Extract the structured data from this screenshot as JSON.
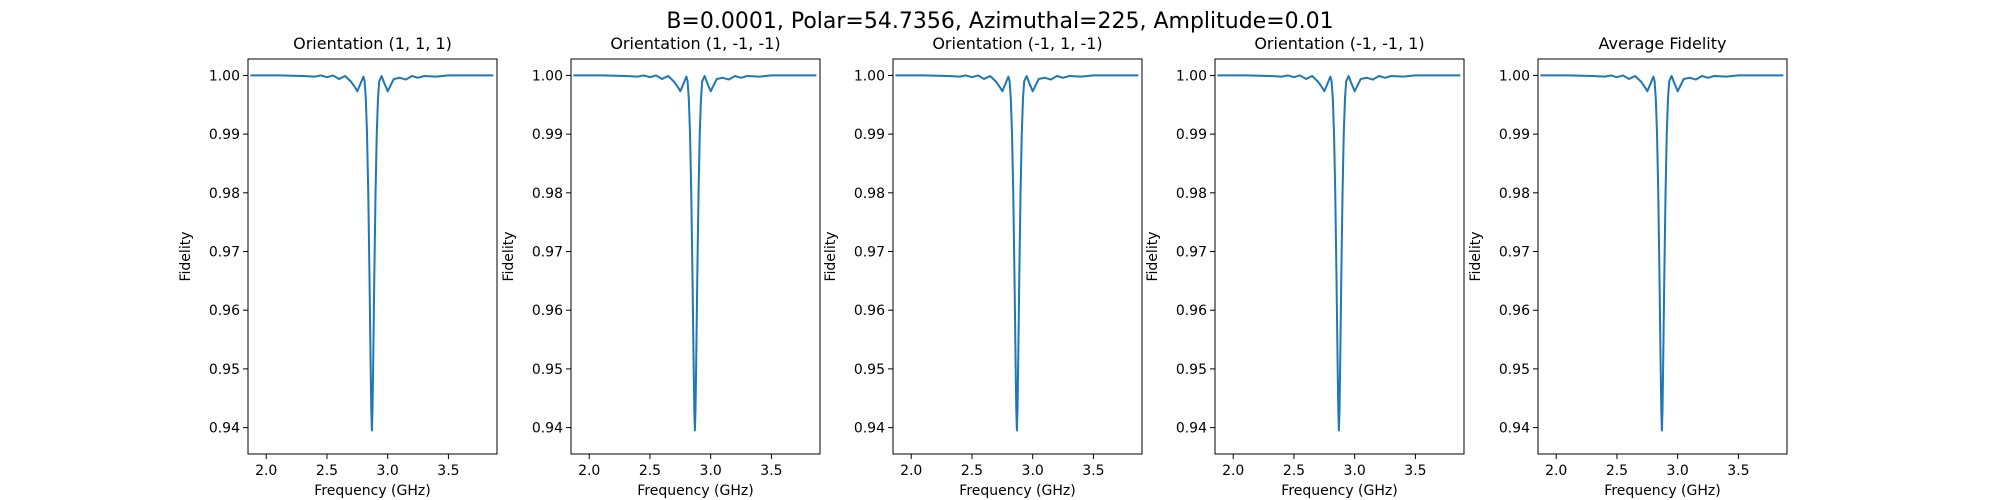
{
  "figure": {
    "suptitle": "B=0.0001, Polar=54.7356, Azimuthal=225, Amplitude=0.01"
  },
  "chart_data": [
    {
      "type": "line",
      "title": "Orientation (1, 1, 1)",
      "xlabel": "Frequency (GHz)",
      "ylabel": "Fidelity",
      "xlim": [
        1.85,
        3.9
      ],
      "ylim": [
        0.9355,
        1.0028
      ],
      "xticks": [
        "2.0",
        "2.5",
        "3.0",
        "3.5"
      ],
      "yticks": [
        "1.00",
        "0.99",
        "0.98",
        "0.97",
        "0.96",
        "0.95",
        "0.94"
      ],
      "series": [
        {
          "color": "#1f77b4",
          "x": [
            1.87,
            2.1,
            2.3,
            2.4,
            2.45,
            2.5,
            2.55,
            2.6,
            2.65,
            2.7,
            2.73,
            2.75,
            2.78,
            2.8,
            2.81,
            2.82,
            2.83,
            2.84,
            2.85,
            2.86,
            2.865,
            2.87,
            2.875,
            2.88,
            2.89,
            2.9,
            2.91,
            2.92,
            2.93,
            2.95,
            2.97,
            3.0,
            3.05,
            3.1,
            3.15,
            3.2,
            3.25,
            3.3,
            3.4,
            3.5,
            3.6,
            3.87
          ],
          "y": [
            1.0,
            1.0,
            0.9999,
            0.9998,
            1.0,
            0.9997,
            1.0,
            0.9994,
            0.9999,
            0.9989,
            0.998,
            0.9973,
            0.9988,
            0.9998,
            0.999,
            0.996,
            0.99,
            0.98,
            0.966,
            0.95,
            0.943,
            0.9395,
            0.943,
            0.95,
            0.966,
            0.98,
            0.99,
            0.996,
            0.999,
            0.9999,
            0.9988,
            0.9973,
            0.9994,
            0.9996,
            0.9993,
            0.9999,
            0.9996,
            0.9999,
            0.9998,
            1.0,
            1.0,
            1.0
          ]
        }
      ]
    },
    {
      "type": "line",
      "title": "Orientation (1, -1, -1)",
      "xlabel": "Frequency (GHz)",
      "ylabel": "Fidelity",
      "xlim": [
        1.85,
        3.9
      ],
      "ylim": [
        0.9355,
        1.0028
      ],
      "xticks": [
        "2.0",
        "2.5",
        "3.0",
        "3.5"
      ],
      "yticks": [
        "1.00",
        "0.99",
        "0.98",
        "0.97",
        "0.96",
        "0.95",
        "0.94"
      ],
      "series": [
        {
          "color": "#1f77b4",
          "x": [
            1.87,
            2.1,
            2.3,
            2.4,
            2.45,
            2.5,
            2.55,
            2.6,
            2.65,
            2.7,
            2.73,
            2.75,
            2.78,
            2.8,
            2.81,
            2.82,
            2.83,
            2.84,
            2.85,
            2.86,
            2.865,
            2.87,
            2.875,
            2.88,
            2.89,
            2.9,
            2.91,
            2.92,
            2.93,
            2.95,
            2.97,
            3.0,
            3.05,
            3.1,
            3.15,
            3.2,
            3.25,
            3.3,
            3.4,
            3.5,
            3.6,
            3.87
          ],
          "y": [
            1.0,
            1.0,
            0.9999,
            0.9998,
            1.0,
            0.9997,
            1.0,
            0.9994,
            0.9999,
            0.9989,
            0.998,
            0.9973,
            0.9988,
            0.9998,
            0.999,
            0.996,
            0.99,
            0.98,
            0.966,
            0.95,
            0.943,
            0.9395,
            0.943,
            0.95,
            0.966,
            0.98,
            0.99,
            0.996,
            0.999,
            0.9999,
            0.9988,
            0.9973,
            0.9994,
            0.9996,
            0.9993,
            0.9999,
            0.9996,
            0.9999,
            0.9998,
            1.0,
            1.0,
            1.0
          ]
        }
      ]
    },
    {
      "type": "line",
      "title": "Orientation (-1, 1, -1)",
      "xlabel": "Frequency (GHz)",
      "ylabel": "Fidelity",
      "xlim": [
        1.85,
        3.9
      ],
      "ylim": [
        0.9355,
        1.0028
      ],
      "xticks": [
        "2.0",
        "2.5",
        "3.0",
        "3.5"
      ],
      "yticks": [
        "1.00",
        "0.99",
        "0.98",
        "0.97",
        "0.96",
        "0.95",
        "0.94"
      ],
      "series": [
        {
          "color": "#1f77b4",
          "x": [
            1.87,
            2.1,
            2.3,
            2.4,
            2.45,
            2.5,
            2.55,
            2.6,
            2.65,
            2.7,
            2.73,
            2.75,
            2.78,
            2.8,
            2.81,
            2.82,
            2.83,
            2.84,
            2.85,
            2.86,
            2.865,
            2.87,
            2.875,
            2.88,
            2.89,
            2.9,
            2.91,
            2.92,
            2.93,
            2.95,
            2.97,
            3.0,
            3.05,
            3.1,
            3.15,
            3.2,
            3.25,
            3.3,
            3.4,
            3.5,
            3.6,
            3.87
          ],
          "y": [
            1.0,
            1.0,
            0.9999,
            0.9998,
            1.0,
            0.9997,
            1.0,
            0.9994,
            0.9999,
            0.9989,
            0.998,
            0.9973,
            0.9988,
            0.9998,
            0.999,
            0.996,
            0.99,
            0.98,
            0.966,
            0.95,
            0.943,
            0.9395,
            0.943,
            0.95,
            0.966,
            0.98,
            0.99,
            0.996,
            0.999,
            0.9999,
            0.9988,
            0.9973,
            0.9994,
            0.9996,
            0.9993,
            0.9999,
            0.9996,
            0.9999,
            0.9998,
            1.0,
            1.0,
            1.0
          ]
        }
      ]
    },
    {
      "type": "line",
      "title": "Orientation (-1, -1, 1)",
      "xlabel": "Frequency (GHz)",
      "ylabel": "Fidelity",
      "xlim": [
        1.85,
        3.9
      ],
      "ylim": [
        0.9355,
        1.0028
      ],
      "xticks": [
        "2.0",
        "2.5",
        "3.0",
        "3.5"
      ],
      "yticks": [
        "1.00",
        "0.99",
        "0.98",
        "0.97",
        "0.96",
        "0.95",
        "0.94"
      ],
      "series": [
        {
          "color": "#1f77b4",
          "x": [
            1.87,
            2.1,
            2.3,
            2.4,
            2.45,
            2.5,
            2.55,
            2.6,
            2.65,
            2.7,
            2.73,
            2.75,
            2.78,
            2.8,
            2.81,
            2.82,
            2.83,
            2.84,
            2.85,
            2.86,
            2.865,
            2.87,
            2.875,
            2.88,
            2.89,
            2.9,
            2.91,
            2.92,
            2.93,
            2.95,
            2.97,
            3.0,
            3.05,
            3.1,
            3.15,
            3.2,
            3.25,
            3.3,
            3.4,
            3.5,
            3.6,
            3.87
          ],
          "y": [
            1.0,
            1.0,
            0.9999,
            0.9998,
            1.0,
            0.9997,
            1.0,
            0.9994,
            0.9999,
            0.9989,
            0.998,
            0.9973,
            0.9988,
            0.9998,
            0.999,
            0.996,
            0.99,
            0.98,
            0.966,
            0.95,
            0.943,
            0.9395,
            0.943,
            0.95,
            0.966,
            0.98,
            0.99,
            0.996,
            0.999,
            0.9999,
            0.9988,
            0.9973,
            0.9994,
            0.9996,
            0.9993,
            0.9999,
            0.9996,
            0.9999,
            0.9998,
            1.0,
            1.0,
            1.0
          ]
        }
      ]
    },
    {
      "type": "line",
      "title": "Average Fidelity",
      "xlabel": "Frequency (GHz)",
      "ylabel": "Fidelity",
      "xlim": [
        1.85,
        3.9
      ],
      "ylim": [
        0.9355,
        1.0028
      ],
      "xticks": [
        "2.0",
        "2.5",
        "3.0",
        "3.5"
      ],
      "yticks": [
        "1.00",
        "0.99",
        "0.98",
        "0.97",
        "0.96",
        "0.95",
        "0.94"
      ],
      "series": [
        {
          "color": "#1f77b4",
          "x": [
            1.87,
            2.1,
            2.3,
            2.4,
            2.45,
            2.5,
            2.55,
            2.6,
            2.65,
            2.7,
            2.73,
            2.75,
            2.78,
            2.8,
            2.81,
            2.82,
            2.83,
            2.84,
            2.85,
            2.86,
            2.865,
            2.87,
            2.875,
            2.88,
            2.89,
            2.9,
            2.91,
            2.92,
            2.93,
            2.95,
            2.97,
            3.0,
            3.05,
            3.1,
            3.15,
            3.2,
            3.25,
            3.3,
            3.4,
            3.5,
            3.6,
            3.87
          ],
          "y": [
            1.0,
            1.0,
            0.9999,
            0.9998,
            1.0,
            0.9997,
            1.0,
            0.9994,
            0.9999,
            0.9989,
            0.998,
            0.9973,
            0.9988,
            0.9998,
            0.999,
            0.996,
            0.99,
            0.98,
            0.966,
            0.95,
            0.943,
            0.9395,
            0.943,
            0.95,
            0.966,
            0.98,
            0.99,
            0.996,
            0.999,
            0.9999,
            0.9988,
            0.9973,
            0.9994,
            0.9996,
            0.9993,
            0.9999,
            0.9996,
            0.9999,
            0.9998,
            1.0,
            1.0,
            1.0
          ]
        }
      ]
    }
  ]
}
